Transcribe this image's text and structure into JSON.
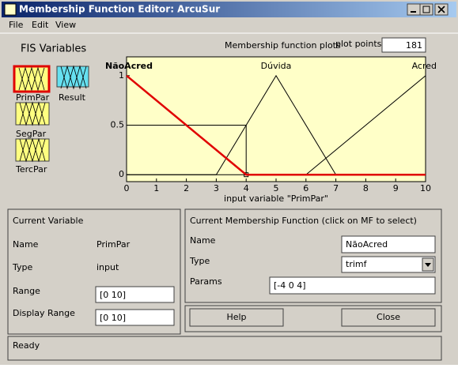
{
  "window": {
    "title": "Membership Function Editor: ArcuSur",
    "menu": [
      "File",
      "Edit",
      "View"
    ]
  },
  "fis_variables": {
    "title": "FIS Variables",
    "inputs": [
      "PrimPar",
      "SegPar",
      "TercPar"
    ],
    "outputs": [
      "Result"
    ],
    "selected": "PrimPar"
  },
  "plot_header": {
    "title": "Membership function plots",
    "points_label": "plot points:",
    "points": "181"
  },
  "plot": {
    "type": "line",
    "xlabel": "input variable \"PrimPar\"",
    "xlim": [
      0,
      10
    ],
    "ylim": [
      -0.07,
      1.19
    ],
    "xticks": [
      0,
      1,
      2,
      3,
      4,
      5,
      6,
      7,
      8,
      9,
      10
    ],
    "yticks": [
      0,
      0.5,
      1
    ],
    "background": "#ffffc8",
    "selected": 0,
    "series": [
      {
        "name": "NãoAcred",
        "color": "#e00000",
        "x": [
          0,
          4,
          10
        ],
        "values": [
          1,
          0,
          0
        ]
      },
      {
        "name": "Dúvida",
        "color": "#000000",
        "x": [
          0,
          3,
          5,
          7,
          10
        ],
        "values": [
          0,
          0,
          1,
          0,
          0
        ]
      },
      {
        "name": "Acred",
        "color": "#000000",
        "x": [
          0,
          6,
          10
        ],
        "values": [
          0,
          0,
          1
        ]
      }
    ],
    "cursor": {
      "x": 4,
      "y": 0.5
    }
  },
  "current_variable": {
    "title": "Current Variable",
    "name_label": "Name",
    "name": "PrimPar",
    "type_label": "Type",
    "type": "input",
    "range_label": "Range",
    "range": "[0 10]",
    "display_range_label": "Display Range",
    "display_range": "[0 10]"
  },
  "current_mf": {
    "title": "Current Membership Function (click on MF to select)",
    "name_label": "Name",
    "name": "NãoAcred",
    "type_label": "Type",
    "type": "trimf",
    "params_label": "Params",
    "params": "[-4 0 4]"
  },
  "buttons": [
    "Help",
    "Close"
  ],
  "status": "Ready"
}
